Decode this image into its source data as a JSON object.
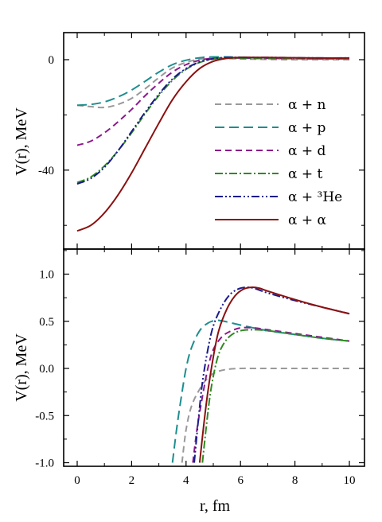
{
  "chart_data": [
    {
      "type": "line",
      "panel": "top",
      "ylabel": "V(r), MeV",
      "xlabel": "",
      "xlim": [
        -0.5,
        10.5
      ],
      "ylim": [
        -63.5,
        10
      ],
      "yticks": [
        0,
        -40
      ],
      "ytick_labels": [
        "0",
        "-40"
      ],
      "xticks": [
        0,
        2,
        4,
        6,
        8,
        10
      ],
      "grid": false,
      "legend_position": "right",
      "series": [
        {
          "name": "α + n",
          "color": "#999999",
          "dash": "8,5",
          "x": [
            0,
            0.5,
            1,
            1.5,
            2,
            2.5,
            3,
            3.5,
            4,
            4.5,
            5,
            6,
            7,
            8,
            9,
            10
          ],
          "y": [
            -16.5,
            -17.0,
            -17.3,
            -16.2,
            -14.0,
            -10.5,
            -6.5,
            -3.0,
            -1.0,
            0.2,
            0.5,
            0.3,
            0.1,
            0.0,
            0.0,
            0.0
          ]
        },
        {
          "name": "α + p",
          "color": "#1e8e8e",
          "dash": "12,6",
          "x": [
            0,
            0.5,
            1,
            1.5,
            2,
            2.5,
            3,
            3.5,
            4,
            4.5,
            5,
            6,
            7,
            8,
            9,
            10
          ],
          "y": [
            -16.5,
            -16.2,
            -15.3,
            -13.5,
            -11.0,
            -7.8,
            -4.5,
            -1.8,
            -0.2,
            0.7,
            1.0,
            0.9,
            0.7,
            0.6,
            0.5,
            0.4
          ]
        },
        {
          "name": "α + d",
          "color": "#8b1a8b",
          "dash": "8,5",
          "x": [
            0,
            0.5,
            1,
            1.5,
            2,
            2.5,
            3,
            3.5,
            4,
            4.5,
            5,
            6,
            7,
            8,
            9,
            10
          ],
          "y": [
            -31.0,
            -29.5,
            -26.5,
            -22.5,
            -18.0,
            -13.0,
            -8.5,
            -4.5,
            -1.8,
            -0.2,
            0.5,
            0.6,
            0.5,
            0.4,
            0.3,
            0.3
          ]
        },
        {
          "name": "α + t",
          "color": "#2e8b22",
          "dash": "10,3,2,3",
          "x": [
            0,
            0.5,
            1,
            1.5,
            2,
            2.5,
            3,
            3.5,
            4,
            4.5,
            5,
            5.5,
            6,
            7,
            8,
            9,
            10
          ],
          "y": [
            -44.5,
            -42.5,
            -38.5,
            -33.0,
            -26.5,
            -19.5,
            -13.0,
            -7.5,
            -3.5,
            -1.0,
            0.2,
            0.5,
            0.5,
            0.4,
            0.4,
            0.3,
            0.3
          ]
        },
        {
          "name": "α + ³He",
          "color": "#1a1a8b",
          "dash": "10,3,2,3,2,3",
          "x": [
            0,
            0.5,
            1,
            1.5,
            2,
            2.5,
            3,
            3.5,
            4,
            4.5,
            5,
            5.5,
            6,
            7,
            8,
            9,
            10
          ],
          "y": [
            -45.0,
            -43.0,
            -39.0,
            -33.0,
            -26.0,
            -19.0,
            -12.5,
            -7.0,
            -3.2,
            -0.8,
            0.4,
            0.8,
            0.8,
            0.8,
            0.7,
            0.6,
            0.6
          ]
        },
        {
          "name": "α + α",
          "color": "#8b1010",
          "dash": "",
          "x": [
            0,
            0.5,
            1,
            1.5,
            2,
            2.5,
            3,
            3.5,
            4,
            4.5,
            5,
            5.5,
            6,
            6.5,
            7,
            8,
            9,
            10
          ],
          "y": [
            -62.0,
            -60.0,
            -55.5,
            -49.0,
            -41.0,
            -32.0,
            -23.0,
            -14.5,
            -8.0,
            -3.2,
            -0.6,
            0.5,
            0.8,
            0.8,
            0.8,
            0.7,
            0.6,
            0.6
          ]
        }
      ]
    },
    {
      "type": "line",
      "panel": "bottom",
      "ylabel": "V(r), MeV",
      "xlabel": "r, fm",
      "xlim": [
        -0.5,
        10.5
      ],
      "ylim": [
        -1.0,
        1.25
      ],
      "yticks": [
        1.0,
        0.5,
        0.0,
        -0.5,
        -1.0
      ],
      "ytick_labels": [
        "1.0",
        "0.5",
        "0.0",
        "-0.5",
        "-1.0"
      ],
      "xticks": [
        0,
        2,
        4,
        6,
        8,
        10
      ],
      "xtick_labels": [
        "0",
        "2",
        "4",
        "6",
        "8",
        "10"
      ],
      "grid": false,
      "series": [
        {
          "name": "α + n",
          "color": "#999999",
          "dash": "8,5",
          "x": [
            3.85,
            4.0,
            4.2,
            4.5,
            4.8,
            5.1,
            5.5,
            6.0,
            6.5,
            7,
            8,
            9,
            10
          ],
          "y": [
            -1.0,
            -0.65,
            -0.4,
            -0.22,
            -0.1,
            -0.04,
            -0.01,
            0.0,
            0.0,
            0.0,
            0.0,
            0.0,
            0.0
          ]
        },
        {
          "name": "α + p",
          "color": "#1e8e8e",
          "dash": "12,6",
          "x": [
            3.5,
            3.65,
            3.8,
            4.0,
            4.2,
            4.5,
            4.8,
            5.1,
            5.4,
            6.0,
            7,
            8,
            9,
            10
          ],
          "y": [
            -1.0,
            -0.65,
            -0.35,
            0.0,
            0.22,
            0.4,
            0.48,
            0.51,
            0.5,
            0.46,
            0.4,
            0.36,
            0.32,
            0.29
          ]
        },
        {
          "name": "α + d",
          "color": "#8b1a8b",
          "dash": "8,5",
          "x": [
            4.25,
            4.4,
            4.6,
            4.8,
            5.0,
            5.3,
            5.6,
            6.0,
            6.5,
            7,
            8,
            9,
            10
          ],
          "y": [
            -1.0,
            -0.65,
            -0.3,
            0.0,
            0.2,
            0.33,
            0.39,
            0.43,
            0.43,
            0.41,
            0.37,
            0.33,
            0.29
          ]
        },
        {
          "name": "α + t",
          "color": "#2e8b22",
          "dash": "10,3,2,3",
          "x": [
            4.6,
            4.75,
            4.9,
            5.1,
            5.3,
            5.6,
            6.0,
            6.5,
            7,
            8,
            9,
            10
          ],
          "y": [
            -1.0,
            -0.6,
            -0.25,
            0.05,
            0.22,
            0.34,
            0.4,
            0.41,
            0.4,
            0.36,
            0.32,
            0.29
          ]
        },
        {
          "name": "α + ³He",
          "color": "#1a1a8b",
          "dash": "10,3,2,3,2,3",
          "x": [
            4.3,
            4.45,
            4.6,
            4.8,
            5.0,
            5.3,
            5.6,
            5.9,
            6.2,
            6.5,
            7,
            8,
            9,
            10
          ],
          "y": [
            -1.0,
            -0.55,
            -0.15,
            0.2,
            0.45,
            0.65,
            0.78,
            0.84,
            0.86,
            0.85,
            0.8,
            0.72,
            0.65,
            0.58
          ]
        },
        {
          "name": "α + α",
          "color": "#8b1010",
          "dash": "",
          "x": [
            4.5,
            4.65,
            4.8,
            5.0,
            5.2,
            5.5,
            5.8,
            6.1,
            6.4,
            6.7,
            7,
            8,
            9,
            10
          ],
          "y": [
            -1.0,
            -0.6,
            -0.25,
            0.12,
            0.4,
            0.63,
            0.77,
            0.84,
            0.86,
            0.85,
            0.82,
            0.73,
            0.65,
            0.58
          ]
        }
      ]
    }
  ]
}
